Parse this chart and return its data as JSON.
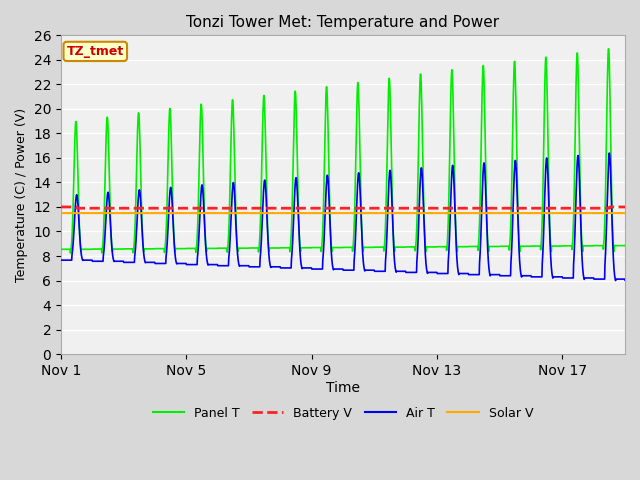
{
  "title": "Tonzi Tower Met: Temperature and Power",
  "xlabel": "Time",
  "ylabel": "Temperature (C) / Power (V)",
  "ylim": [
    0,
    26
  ],
  "yticks": [
    0,
    2,
    4,
    6,
    8,
    10,
    12,
    14,
    16,
    18,
    20,
    22,
    24,
    26
  ],
  "xticklabels": [
    "Nov 1",
    "Nov 5",
    "Nov 9",
    "Nov 13",
    "Nov 17"
  ],
  "xtick_positions": [
    0,
    4,
    8,
    12,
    16
  ],
  "annotation_label": "TZ_tmet",
  "annotation_bg": "#ffffcc",
  "annotation_border": "#cc8800",
  "annotation_text_color": "#cc0000",
  "legend_entries": [
    "Panel T",
    "Battery V",
    "Air T",
    "Solar V"
  ],
  "legend_colors": [
    "#00ee00",
    "#ff2222",
    "#0000ee",
    "#ffaa00"
  ],
  "panel_t_color": "#00ee00",
  "battery_v_color": "#ff2222",
  "air_t_color": "#0000ee",
  "solar_v_color": "#ffaa00"
}
